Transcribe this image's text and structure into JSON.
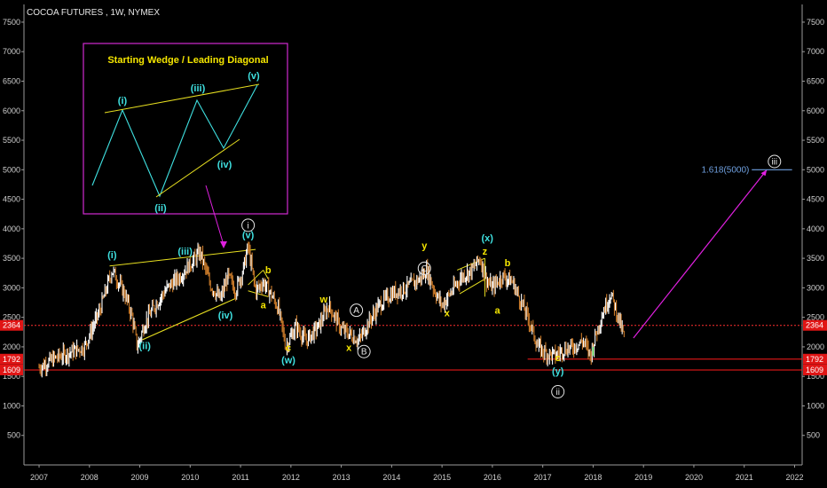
{
  "chart_data": {
    "type": "line",
    "title": "COCOA FUTURES , 1W, NYMEX",
    "x_ticks": [
      "2007",
      "2008",
      "2009",
      "2010",
      "2011",
      "2012",
      "2013",
      "2014",
      "2015",
      "2016",
      "2017",
      "2018",
      "2019",
      "2020",
      "2021",
      "2022"
    ],
    "y_ticks": [
      500,
      1000,
      1500,
      2000,
      2500,
      3000,
      3500,
      4000,
      4500,
      5000,
      5500,
      6000,
      6500,
      7000,
      7500
    ],
    "ylim": [
      0,
      7800
    ],
    "grid": false,
    "series": [
      {
        "values_x": [
          2007.0,
          2007.3,
          2007.6,
          2007.9,
          2008.2,
          2008.45,
          2008.7,
          2008.85,
          2008.95,
          2009.1,
          2009.3,
          2009.55,
          2009.8,
          2010.0,
          2010.2,
          2010.4,
          2010.6,
          2010.75,
          2010.9,
          2011.05,
          2011.15,
          2011.3,
          2011.45,
          2011.6,
          2011.75,
          2011.9,
          2012.1,
          2012.3,
          2012.55,
          2012.75,
          2013.0,
          2013.2,
          2013.35,
          2013.5,
          2013.75,
          2014.0,
          2014.3,
          2014.55,
          2014.7,
          2014.85,
          2015.0,
          2015.2,
          2015.4,
          2015.6,
          2015.75,
          2015.9,
          2016.0,
          2016.2,
          2016.4,
          2016.55,
          2016.75,
          2016.9,
          2017.05,
          2017.25,
          2017.4,
          2017.6,
          2017.8,
          2017.95,
          2018.05,
          2018.2,
          2018.35,
          2018.5,
          2018.62
        ],
        "values_y": [
          1650,
          1800,
          1900,
          2000,
          2600,
          3300,
          2900,
          2500,
          2000,
          2400,
          2700,
          3000,
          3200,
          3400,
          3600,
          3050,
          2800,
          3200,
          2950,
          3300,
          3700,
          2950,
          3100,
          2900,
          2650,
          2000,
          2350,
          2100,
          2350,
          2700,
          2300,
          2200,
          2100,
          2350,
          2700,
          2900,
          3000,
          3150,
          3300,
          2950,
          2700,
          2950,
          3200,
          3300,
          3500,
          3100,
          3000,
          3200,
          3100,
          2800,
          2400,
          2000,
          1900,
          1850,
          1950,
          2000,
          2100,
          1850,
          2200,
          2600,
          2900,
          2500,
          2150
        ]
      }
    ],
    "h_lines": [
      {
        "value": 2364,
        "label": "2364",
        "color": "#ff3030",
        "style": "dotted"
      },
      {
        "value": 1792,
        "label": "1792",
        "color": "#ff1a1a",
        "style": "solid"
      },
      {
        "value": 1609,
        "label": "1609",
        "color": "#ff1a1a",
        "style": "solid"
      }
    ],
    "fib_target": {
      "text": "1.618(5000)",
      "value": 5000
    },
    "annotations": [
      {
        "text": "(i)",
        "x": 2008.45,
        "y": 3500,
        "color": "cyan"
      },
      {
        "text": "(iii)",
        "x": 2009.9,
        "y": 3560,
        "color": "cyan"
      },
      {
        "text": "(v)",
        "x": 2011.15,
        "y": 3840,
        "color": "cyan"
      },
      {
        "text": "(ii)",
        "x": 2009.1,
        "y": 1960,
        "color": "cyan"
      },
      {
        "text": "(iv)",
        "x": 2010.7,
        "y": 2480,
        "color": "cyan"
      },
      {
        "text": "b",
        "x": 2011.55,
        "y": 3250,
        "color": "yellow"
      },
      {
        "text": "a",
        "x": 2011.45,
        "y": 2650,
        "color": "yellow"
      },
      {
        "text": "c",
        "x": 2011.95,
        "y": 1930,
        "color": "yellow"
      },
      {
        "text": "(w)",
        "x": 2011.95,
        "y": 1720,
        "color": "cyan"
      },
      {
        "text": "w",
        "x": 2012.65,
        "y": 2750,
        "color": "yellow"
      },
      {
        "text": "x",
        "x": 2013.15,
        "y": 1930,
        "color": "yellow"
      },
      {
        "text": "y",
        "x": 2014.65,
        "y": 3660,
        "color": "yellow"
      },
      {
        "text": "x",
        "x": 2015.1,
        "y": 2520,
        "color": "yellow"
      },
      {
        "text": "(x)",
        "x": 2015.9,
        "y": 3790,
        "color": "cyan"
      },
      {
        "text": "z",
        "x": 2015.85,
        "y": 3560,
        "color": "yellow"
      },
      {
        "text": "b",
        "x": 2016.3,
        "y": 3370,
        "color": "yellow"
      },
      {
        "text": "a",
        "x": 2016.1,
        "y": 2560,
        "color": "yellow"
      },
      {
        "text": "c",
        "x": 2017.3,
        "y": 1760,
        "color": "yellow"
      },
      {
        "text": "(y)",
        "x": 2017.3,
        "y": 1530,
        "color": "cyan"
      }
    ],
    "circled_labels": [
      {
        "text": "i",
        "x": 2011.15,
        "y": 4060
      },
      {
        "text": "A",
        "x": 2013.3,
        "y": 2620
      },
      {
        "text": "B",
        "x": 2013.45,
        "y": 1920
      },
      {
        "text": "C",
        "x": 2014.65,
        "y": 3330
      },
      {
        "text": "ii",
        "x": 2017.3,
        "y": 1240
      },
      {
        "text": "iii",
        "x": 2021.6,
        "y": 5140
      }
    ],
    "inset": {
      "title": "Starting Wedge / Leading Diagonal",
      "labels": [
        "(i)",
        "(ii)",
        "(iii)",
        "(iv)",
        "(v)"
      ]
    }
  },
  "colors": {
    "background": "#000000",
    "price_up": "#ffffff",
    "price_down": "#c97a2a",
    "support": "#ff1a1a",
    "wedge": "#e8e020",
    "projection": "#e020e0",
    "cyan_label": "#3fe0e0",
    "yellow_label": "#f5e600"
  }
}
